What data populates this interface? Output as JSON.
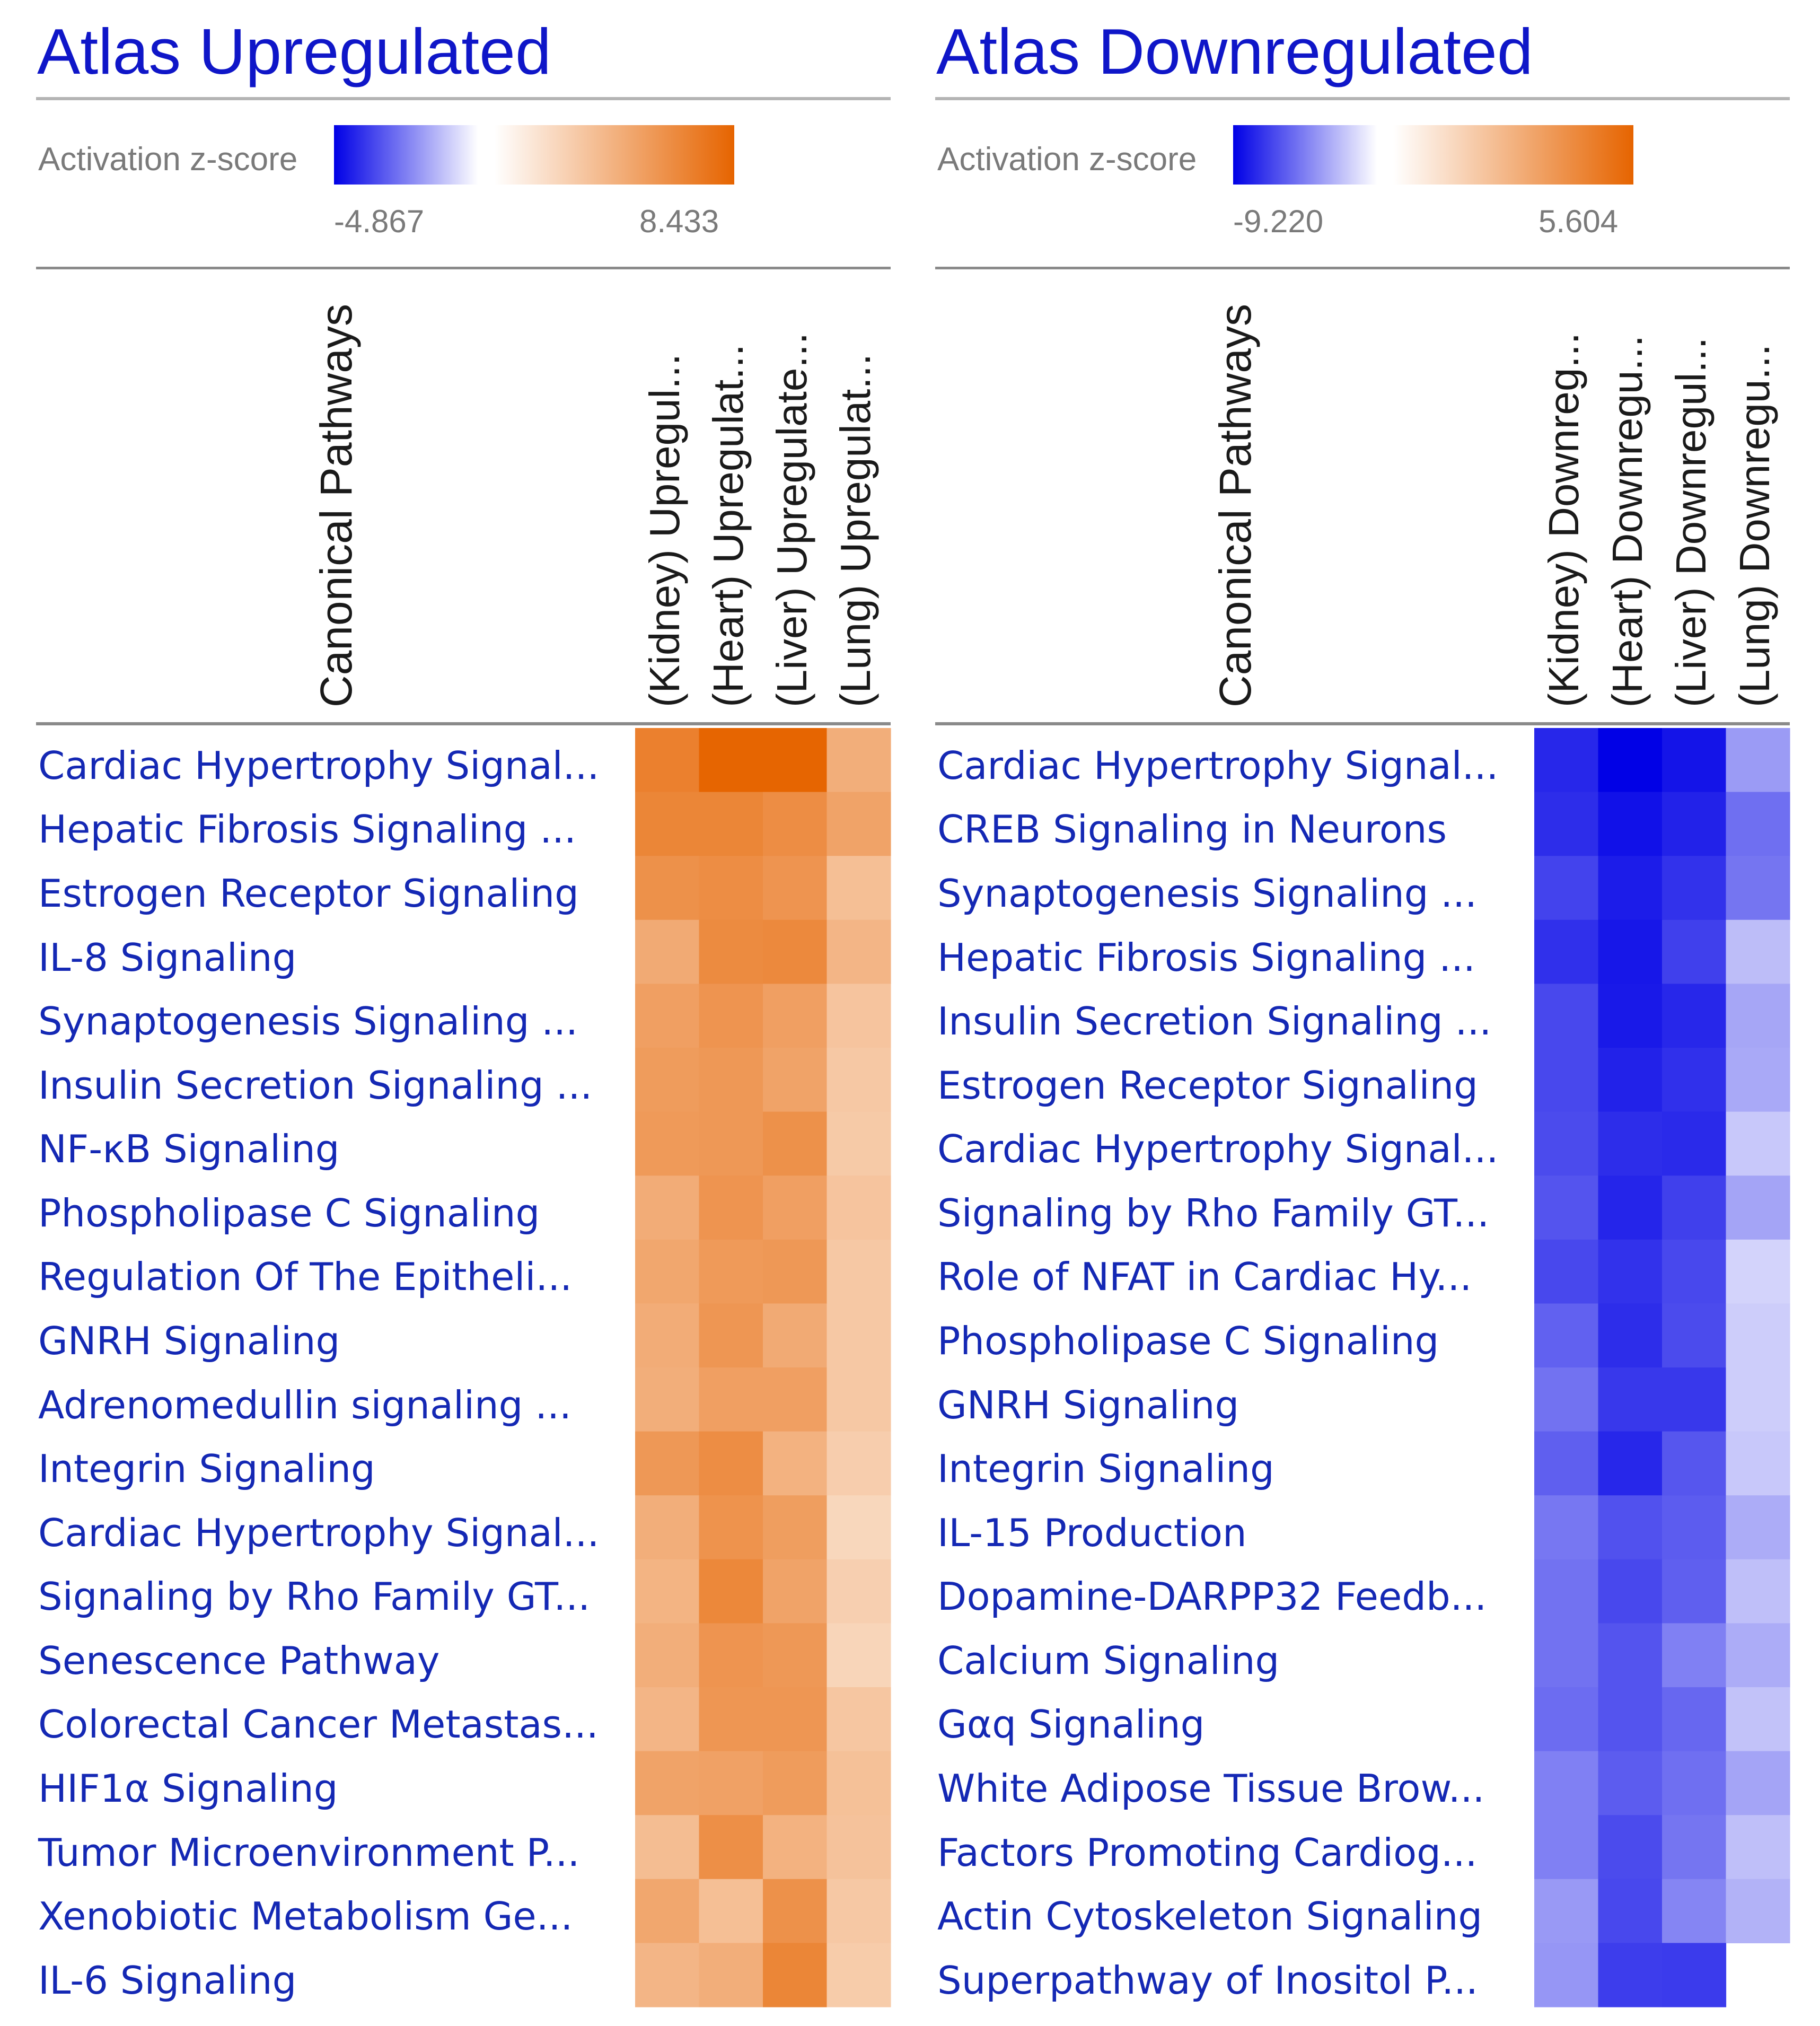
{
  "chart_data": [
    {
      "type": "heatmap",
      "title": "Atlas Upregulated",
      "legend": {
        "label": "Activation z-score",
        "min": -4.867,
        "max": 8.433,
        "min_label": "-4.867",
        "max_label": "8.433",
        "low_color": "#0000e6",
        "mid_color": "#ffffff",
        "high_color": "#e66400"
      },
      "row_header": "Canonical Pathways",
      "columns": [
        "(Kidney) Upregul...",
        "(Heart) Upregulat...",
        "(Liver) Upregulate...",
        "(Lung) Upregulat..."
      ],
      "rows": [
        "Cardiac Hypertrophy Signal...",
        "Hepatic Fibrosis Signaling ...",
        "Estrogen Receptor Signaling",
        "IL-8 Signaling",
        "Synaptogenesis Signaling ...",
        "Insulin Secretion Signaling ...",
        "NF-κB Signaling",
        "Phospholipase C Signaling",
        "Regulation Of The Epitheli...",
        "GNRH Signaling",
        "Adrenomedullin signaling ...",
        "Integrin Signaling",
        "Cardiac Hypertrophy Signal...",
        "Signaling by Rho Family GT...",
        "Senescence Pathway",
        "Colorectal Cancer Metastas...",
        "HIF1α Signaling",
        "Tumor Microenvironment P...",
        "Xenobiotic Metabolism Ge...",
        "IL-6 Signaling"
      ],
      "values": [
        [
          6.9,
          8.4,
          8.4,
          4.4
        ],
        [
          6.6,
          6.6,
          6.2,
          5.0
        ],
        [
          6.0,
          6.2,
          5.8,
          3.5
        ],
        [
          4.6,
          6.3,
          6.4,
          4.0
        ],
        [
          5.2,
          5.8,
          5.2,
          3.2
        ],
        [
          5.4,
          5.6,
          5.0,
          3.0
        ],
        [
          5.5,
          5.6,
          6.0,
          2.9
        ],
        [
          4.5,
          5.8,
          5.2,
          3.2
        ],
        [
          4.8,
          5.5,
          5.6,
          3.0
        ],
        [
          4.5,
          5.7,
          4.6,
          3.0
        ],
        [
          4.4,
          5.2,
          5.2,
          3.0
        ],
        [
          5.6,
          6.2,
          4.2,
          2.7
        ],
        [
          4.4,
          5.9,
          5.3,
          2.2
        ],
        [
          4.1,
          6.5,
          5.0,
          2.6
        ],
        [
          4.4,
          5.8,
          5.6,
          2.3
        ],
        [
          4.0,
          5.7,
          5.7,
          3.1
        ],
        [
          5.0,
          5.1,
          5.4,
          3.4
        ],
        [
          3.6,
          6.1,
          4.2,
          3.3
        ],
        [
          4.8,
          3.5,
          6.0,
          3.0
        ],
        [
          4.0,
          4.4,
          6.6,
          2.8
        ]
      ]
    },
    {
      "type": "heatmap",
      "title": "Atlas Downregulated",
      "legend": {
        "label": "Activation z-score",
        "min": -9.22,
        "max": 5.604,
        "min_label": "-9.220",
        "max_label": "5.604",
        "low_color": "#0000e6",
        "mid_color": "#ffffff",
        "high_color": "#e66400"
      },
      "row_header": "Canonical Pathways",
      "columns": [
        "(Kidney) Downreg...",
        "(Heart) Downregu...",
        "(Liver) Downregul...",
        "(Lung) Downregu..."
      ],
      "rows": [
        "Cardiac Hypertrophy Signal...",
        "CREB Signaling in Neurons",
        "Synaptogenesis Signaling ...",
        "Hepatic Fibrosis Signaling ...",
        "Insulin Secretion Signaling ...",
        "Estrogen Receptor Signaling",
        "Cardiac Hypertrophy Signal...",
        "Signaling by Rho Family GT...",
        "Role of NFAT in Cardiac Hy...",
        "Phospholipase C Signaling",
        "GNRH Signaling",
        "Integrin Signaling",
        "IL-15 Production",
        "Dopamine-DARPP32 Feedb...",
        "Calcium Signaling",
        "Gαq Signaling",
        "White Adipose Tissue Brow...",
        "Factors Promoting Cardiog...",
        "Actin Cytoskeleton Signaling",
        "Superpathway of Inositol P..."
      ],
      "values": [
        [
          -7.8,
          -9.2,
          -8.5,
          -3.6
        ],
        [
          -7.6,
          -8.6,
          -8.0,
          -5.2
        ],
        [
          -6.8,
          -8.2,
          -7.4,
          -5.0
        ],
        [
          -7.5,
          -8.4,
          -6.9,
          -2.4
        ],
        [
          -6.6,
          -8.3,
          -7.8,
          -3.2
        ],
        [
          -6.6,
          -8.0,
          -7.5,
          -3.1
        ],
        [
          -6.5,
          -7.6,
          -7.7,
          -2.0
        ],
        [
          -6.2,
          -7.9,
          -6.9,
          -3.3
        ],
        [
          -6.6,
          -7.4,
          -6.6,
          -1.6
        ],
        [
          -5.7,
          -7.6,
          -6.5,
          -1.8
        ],
        [
          -5.1,
          -7.2,
          -7.2,
          -1.8
        ],
        [
          -5.8,
          -7.8,
          -6.1,
          -2.0
        ],
        [
          -4.9,
          -6.3,
          -5.9,
          -3.0
        ],
        [
          -5.1,
          -6.6,
          -5.8,
          -2.3
        ],
        [
          -5.1,
          -6.2,
          -4.6,
          -3.0
        ],
        [
          -5.3,
          -6.2,
          -5.5,
          -2.2
        ],
        [
          -4.6,
          -5.9,
          -5.2,
          -3.3
        ],
        [
          -4.6,
          -6.5,
          -5.0,
          -2.3
        ],
        [
          -3.7,
          -6.6,
          -4.4,
          -2.8
        ],
        [
          -3.8,
          -7.0,
          -7.1,
          null
        ]
      ]
    }
  ]
}
